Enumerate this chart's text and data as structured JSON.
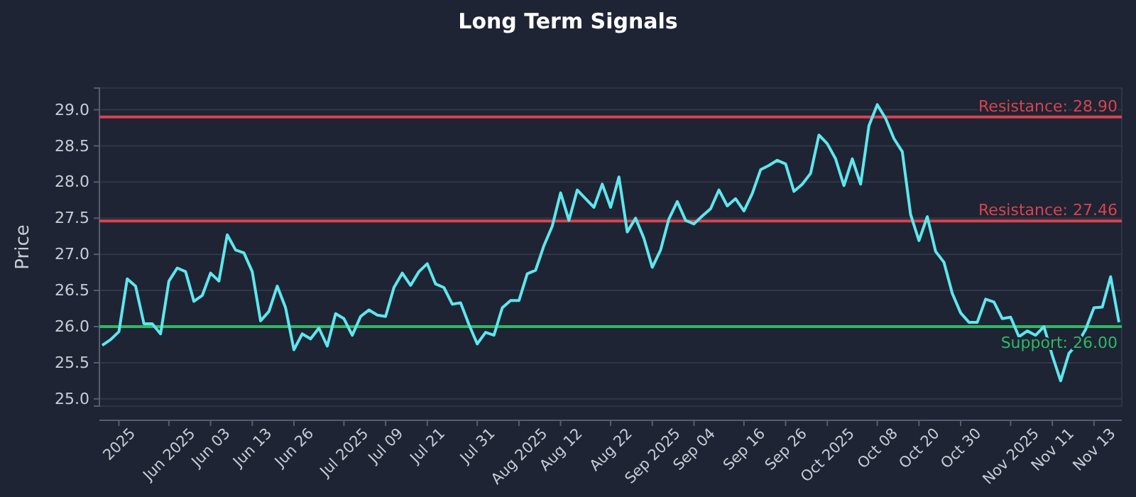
{
  "chart_data": {
    "type": "line",
    "title": "Long Term Signals",
    "ylabel": "Price",
    "categories": [
      null,
      null,
      "2025",
      null,
      null,
      null,
      null,
      null,
      "Jun 2025",
      null,
      null,
      null,
      null,
      "Jun 03",
      null,
      null,
      null,
      null,
      "Jun 13",
      null,
      null,
      null,
      null,
      "Jun 26",
      null,
      null,
      null,
      null,
      null,
      "Jul 2025",
      null,
      null,
      null,
      null,
      "Jul 09",
      null,
      null,
      null,
      null,
      "Jul 21",
      null,
      null,
      null,
      null,
      null,
      "Jul 31",
      null,
      null,
      null,
      null,
      "Aug 2025",
      null,
      null,
      null,
      null,
      "Aug 12",
      null,
      null,
      null,
      null,
      null,
      "Aug 22",
      null,
      null,
      null,
      null,
      "Sep 2025",
      null,
      null,
      null,
      null,
      "Sep 04",
      null,
      null,
      null,
      null,
      null,
      "Sep 16",
      null,
      null,
      null,
      null,
      "Sep 26",
      null,
      null,
      null,
      null,
      "Oct 2025",
      null,
      null,
      null,
      null,
      null,
      "Oct 08",
      null,
      null,
      null,
      null,
      "Oct 20",
      null,
      null,
      null,
      null,
      "Oct 30",
      null,
      null,
      null,
      null,
      null,
      "Nov 2025",
      null,
      null,
      null,
      null,
      "Nov 11",
      null,
      null,
      null,
      null,
      "Nov 13",
      null,
      null,
      null
    ],
    "series": [
      {
        "color": "#5ee6ee",
        "values": [
          25.74,
          25.82,
          25.93,
          26.66,
          26.56,
          26.04,
          26.04,
          25.9,
          26.63,
          26.81,
          26.76,
          26.35,
          26.43,
          26.74,
          26.63,
          27.27,
          27.06,
          27.02,
          26.76,
          26.08,
          26.21,
          26.56,
          26.26,
          25.68,
          25.9,
          25.83,
          25.98,
          25.73,
          26.18,
          26.11,
          25.88,
          26.14,
          26.23,
          26.16,
          26.14,
          26.54,
          26.74,
          26.57,
          26.76,
          26.87,
          26.59,
          26.54,
          26.31,
          26.33,
          26.03,
          25.76,
          25.92,
          25.88,
          26.26,
          26.36,
          26.36,
          26.73,
          26.78,
          27.12,
          27.39,
          27.85,
          27.47,
          27.89,
          27.77,
          27.65,
          27.97,
          27.65,
          28.07,
          27.31,
          27.5,
          27.22,
          26.82,
          27.06,
          27.49,
          27.73,
          27.47,
          27.42,
          27.53,
          27.63,
          27.89,
          27.67,
          27.77,
          27.6,
          27.84,
          28.17,
          28.23,
          28.3,
          28.25,
          27.87,
          27.97,
          28.12,
          28.65,
          28.53,
          28.32,
          27.95,
          28.32,
          27.97,
          28.78,
          29.07,
          28.88,
          28.6,
          28.42,
          27.55,
          27.19,
          27.52,
          27.04,
          26.89,
          26.46,
          26.19,
          26.06,
          26.06,
          26.38,
          26.34,
          26.11,
          26.13,
          25.86,
          25.94,
          25.88,
          26.0,
          25.6,
          25.25,
          25.63,
          25.76,
          25.96,
          26.26,
          26.27,
          26.69,
          26.06
        ]
      }
    ],
    "ylim": [
      24.9,
      29.3
    ],
    "yticks": [
      {
        "value": 25,
        "label": "25.0"
      },
      {
        "value": 25.5,
        "label": "25.5"
      },
      {
        "value": 26,
        "label": "26.0"
      },
      {
        "value": 26.5,
        "label": "26.5"
      },
      {
        "value": 27,
        "label": "27.0"
      },
      {
        "value": 27.5,
        "label": "27.5"
      },
      {
        "value": 28,
        "label": "28.0"
      },
      {
        "value": 28.5,
        "label": "28.5"
      },
      {
        "value": 29,
        "label": "29.0"
      }
    ],
    "grid": "y",
    "line_style": "solid",
    "marker": "none",
    "ref_lines": [
      {
        "axis": "y",
        "value": 28.9,
        "label": "Resistance: 28.90",
        "color": "#d9434f"
      },
      {
        "axis": "y",
        "value": 27.46,
        "label": "Resistance: 27.46",
        "color": "#d9434f"
      },
      {
        "axis": "y",
        "value": 26.0,
        "label": "Support: 26.00",
        "color": "#2fb865"
      }
    ]
  }
}
